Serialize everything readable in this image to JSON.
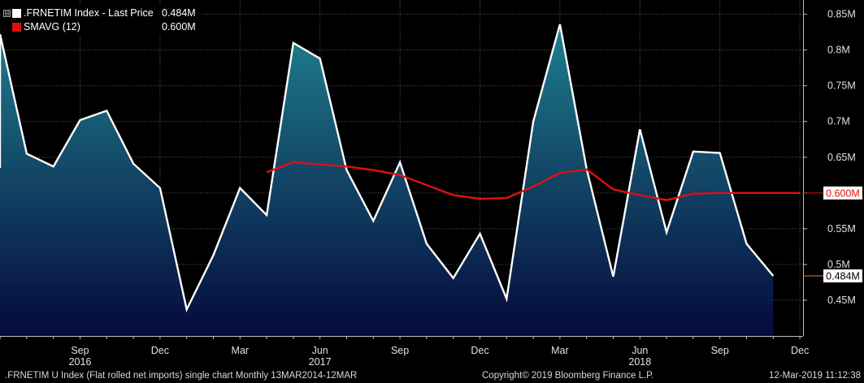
{
  "legend": {
    "toggle_symbol": "⊟",
    "series1_name": ".FRNETIM Index - Last Price",
    "series1_value": "0.484M",
    "series2_name": "SMAVG (12)",
    "series2_value": "0.600M"
  },
  "footer": {
    "left": ".FRNETIM U Index (Flat rolled net imports) single chart  Monthly 13MAR2014-12MAR",
    "middle": "Copyright© 2019 Bloomberg Finance L.P.",
    "right": "12-Mar-2019 11:12:38"
  },
  "colors": {
    "price_line": "#ffffff",
    "area_top": "#1f7f8e",
    "area_bottom": "#050a3c",
    "sma_line": "#e01010",
    "grid": "#5a5a5a",
    "last_price_marker": "#e07a30"
  },
  "chart_data": {
    "type": "area",
    "y_unit": "M",
    "ylim": [
      0.4,
      0.87
    ],
    "y_ticks": [
      "0.45M",
      "0.5M",
      "0.55M",
      "0.6M",
      "0.65M",
      "0.7M",
      "0.75M",
      "0.8M",
      "0.85M"
    ],
    "y_tick_values": [
      0.45,
      0.5,
      0.55,
      0.6,
      0.65,
      0.7,
      0.75,
      0.8,
      0.85
    ],
    "x_months": [
      "2016-06",
      "2016-07",
      "2016-08",
      "2016-09",
      "2016-10",
      "2016-11",
      "2016-12",
      "2017-01",
      "2017-02",
      "2017-03",
      "2017-04",
      "2017-05",
      "2017-06",
      "2017-07",
      "2017-08",
      "2017-09",
      "2017-10",
      "2017-11",
      "2017-12",
      "2018-01",
      "2018-02",
      "2018-03",
      "2018-04",
      "2018-05",
      "2018-06",
      "2018-07",
      "2018-08",
      "2018-09",
      "2018-10",
      "2018-11",
      "2018-12"
    ],
    "x_month_labels": [
      {
        "month": "2016-09",
        "label": "Sep",
        "year": "2016"
      },
      {
        "month": "2016-12",
        "label": "Dec",
        "year": ""
      },
      {
        "month": "2017-03",
        "label": "Mar",
        "year": ""
      },
      {
        "month": "2017-06",
        "label": "Jun",
        "year": "2017"
      },
      {
        "month": "2017-09",
        "label": "Sep",
        "year": ""
      },
      {
        "month": "2017-12",
        "label": "Dec",
        "year": ""
      },
      {
        "month": "2018-03",
        "label": "Mar",
        "year": ""
      },
      {
        "month": "2018-06",
        "label": "Jun",
        "year": "2018"
      },
      {
        "month": "2018-09",
        "label": "Sep",
        "year": ""
      },
      {
        "month": "2018-12",
        "label": "Dec",
        "year": ""
      }
    ],
    "series": [
      {
        "name": ".FRNETIM Index - Last Price",
        "color": "#ffffff",
        "points": [
          [
            "2016-05",
            0.635
          ],
          [
            "2016-06",
            0.822
          ],
          [
            "2016-07",
            0.655
          ],
          [
            "2016-08",
            0.637
          ],
          [
            "2016-09",
            0.702
          ],
          [
            "2016-10",
            0.715
          ],
          [
            "2016-11",
            0.641
          ],
          [
            "2016-12",
            0.607
          ],
          [
            "2017-01",
            0.437
          ],
          [
            "2017-02",
            0.513
          ],
          [
            "2017-03",
            0.607
          ],
          [
            "2017-04",
            0.569
          ],
          [
            "2017-05",
            0.81
          ],
          [
            "2017-06",
            0.788
          ],
          [
            "2017-07",
            0.632
          ],
          [
            "2017-08",
            0.561
          ],
          [
            "2017-09",
            0.643
          ],
          [
            "2017-10",
            0.529
          ],
          [
            "2017-11",
            0.481
          ],
          [
            "2017-12",
            0.543
          ],
          [
            "2018-01",
            0.452
          ],
          [
            "2018-02",
            0.7
          ],
          [
            "2018-03",
            0.836
          ],
          [
            "2018-04",
            0.634
          ],
          [
            "2018-05",
            0.483
          ],
          [
            "2018-06",
            0.689
          ],
          [
            "2018-07",
            0.545
          ],
          [
            "2018-08",
            0.658
          ],
          [
            "2018-09",
            0.656
          ],
          [
            "2018-10",
            0.529
          ],
          [
            "2018-11",
            0.484
          ]
        ]
      },
      {
        "name": "SMAVG (12)",
        "color": "#e01010",
        "points": [
          [
            "2017-04",
            0.629
          ],
          [
            "2017-05",
            0.643
          ],
          [
            "2017-06",
            0.64
          ],
          [
            "2017-07",
            0.637
          ],
          [
            "2017-08",
            0.632
          ],
          [
            "2017-09",
            0.625
          ],
          [
            "2017-10",
            0.611
          ],
          [
            "2017-11",
            0.597
          ],
          [
            "2017-12",
            0.592
          ],
          [
            "2018-01",
            0.593
          ],
          [
            "2018-02",
            0.609
          ],
          [
            "2018-03",
            0.628
          ],
          [
            "2018-04",
            0.633
          ],
          [
            "2018-05",
            0.605
          ],
          [
            "2018-06",
            0.597
          ],
          [
            "2018-07",
            0.59
          ],
          [
            "2018-08",
            0.599
          ],
          [
            "2018-09",
            0.6
          ],
          [
            "2018-10",
            0.6
          ],
          [
            "2018-11",
            0.6
          ],
          [
            "2018-12",
            0.6
          ]
        ]
      }
    ],
    "last_value_labels": [
      {
        "series": "SMAVG (12)",
        "value": 0.6,
        "label": "0.600M"
      },
      {
        "series": ".FRNETIM Index - Last Price",
        "value": 0.484,
        "label": "0.484M"
      }
    ],
    "grid": true
  }
}
